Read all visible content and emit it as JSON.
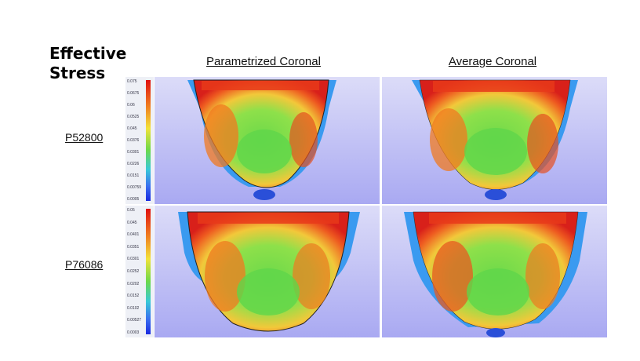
{
  "title": {
    "line1": "Effective",
    "line2": "Stress"
  },
  "columns": [
    "Parametrized Coronal",
    "Average Coronal"
  ],
  "rows": [
    {
      "label": "P52800",
      "legend_ticks": [
        "0.075",
        "0.0675",
        "0.06",
        "0.0525",
        "0.045",
        "0.0376",
        "0.0301",
        "0.0226",
        "0.0151",
        "0.00759",
        "0.0005"
      ]
    },
    {
      "label": "P76086",
      "legend_ticks": [
        "0.05",
        "0.045",
        "0.0401",
        "0.0351",
        "0.0301",
        "0.0252",
        "0.0202",
        "0.0152",
        "0.0102",
        "0.00527",
        "0.0003"
      ]
    }
  ],
  "colors": {
    "background_top": "#dcdcf8",
    "background_bottom": "#a9a9f2",
    "high": "#e01010",
    "mid": "#6cd94a",
    "low": "#1a2ae0"
  }
}
